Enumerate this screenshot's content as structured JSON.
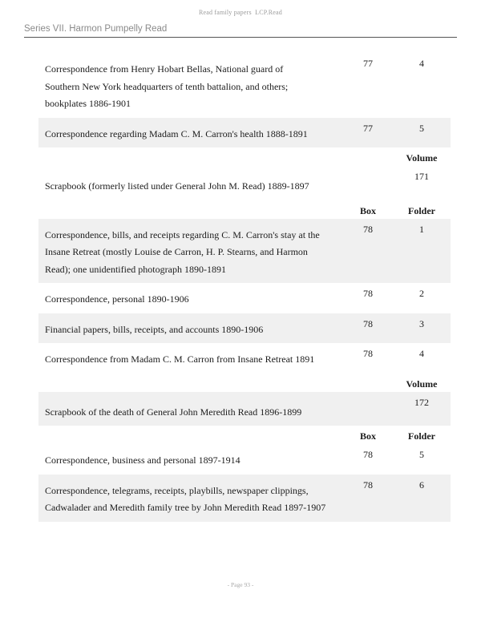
{
  "page": {
    "header_center": "Read family papers  LCP.Read",
    "series_title": "Series VII. Harmon Pumpelly Read",
    "footer": "- Page 93 -"
  },
  "table": {
    "headers": {
      "box": "Box",
      "folder": "Folder",
      "volume": "Volume"
    },
    "rows": [
      {
        "type": "item",
        "shaded": false,
        "description": "Correspondence from Henry Hobart Bellas, National guard of\nSouthern New York headquarters of tenth battalion, and others;\nbookplates 1886-1901",
        "box": "77",
        "folder": "4"
      },
      {
        "type": "item",
        "shaded": true,
        "description": "Correspondence regarding Madam C. M. Carron's health 1888-1891",
        "box": "77",
        "folder": "5"
      },
      {
        "type": "volume-header"
      },
      {
        "type": "volume-item",
        "shaded": false,
        "description": "Scrapbook (formerly listed under General John M. Read) 1889-1897",
        "volume": "171"
      },
      {
        "type": "box-folder-header"
      },
      {
        "type": "item",
        "shaded": true,
        "description": "Correspondence, bills, and receipts regarding C. M. Carron's stay at the\nInsane Retreat (mostly Louise de Carron, H. P. Stearns, and Harmon\nRead); one unidentified photograph 1890-1891",
        "box": "78",
        "folder": "1"
      },
      {
        "type": "item",
        "shaded": false,
        "description": "Correspondence, personal 1890-1906",
        "box": "78",
        "folder": "2"
      },
      {
        "type": "item",
        "shaded": true,
        "description": "Financial papers, bills, receipts, and accounts 1890-1906",
        "box": "78",
        "folder": "3"
      },
      {
        "type": "item",
        "shaded": false,
        "description": "Correspondence from Madam C. M. Carron from Insane Retreat 1891",
        "box": "78",
        "folder": "4"
      },
      {
        "type": "volume-header"
      },
      {
        "type": "volume-item",
        "shaded": true,
        "description": "Scrapbook of the death of General John Meredith Read 1896-1899",
        "volume": "172"
      },
      {
        "type": "box-folder-header"
      },
      {
        "type": "item",
        "shaded": false,
        "description": "Correspondence, business and personal 1897-1914",
        "box": "78",
        "folder": "5"
      },
      {
        "type": "item",
        "shaded": true,
        "description": "Correspondence, telegrams, receipts, playbills, newspaper clippings,\nCadwalader and Meredith family tree by John Meredith Read 1897-1907",
        "box": "78",
        "folder": "6"
      }
    ]
  }
}
